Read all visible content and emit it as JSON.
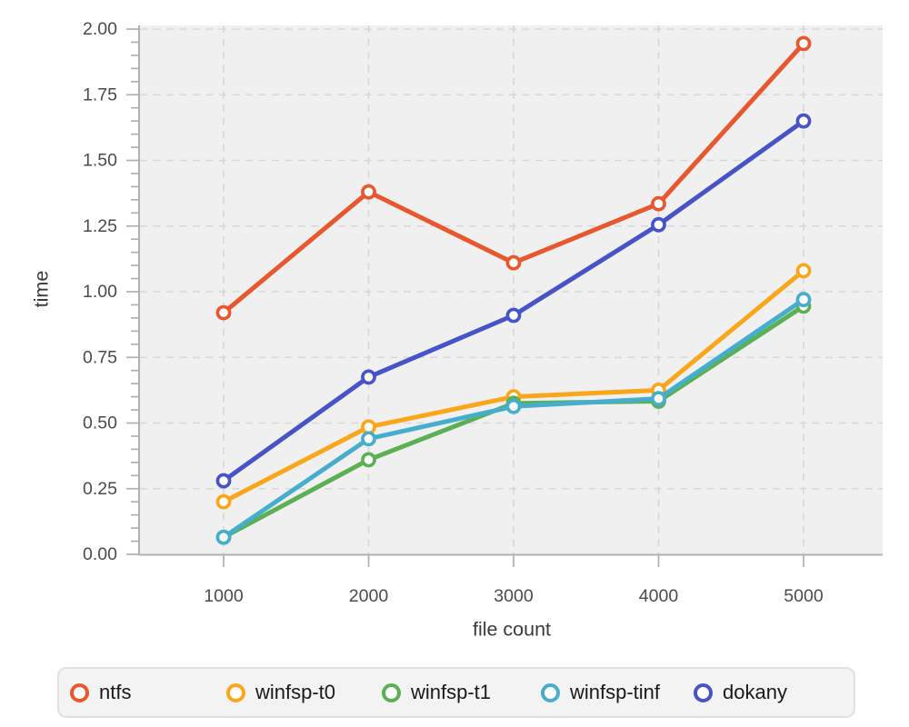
{
  "chart_data": {
    "type": "line",
    "title": "",
    "xlabel": "file count",
    "ylabel": "time",
    "x": [
      1000,
      2000,
      3000,
      4000,
      5000
    ],
    "x_tick_labels": [
      "1000",
      "2000",
      "3000",
      "4000",
      "5000"
    ],
    "y_ticks": [
      0,
      0.25,
      0.5,
      0.75,
      1.0,
      1.25,
      1.5,
      1.75,
      2.0
    ],
    "y_tick_labels": [
      "0.00",
      "0.25",
      "0.50",
      "0.75",
      "1.00",
      "1.25",
      "1.50",
      "1.75",
      "2.00"
    ],
    "ylim": [
      0,
      2.0
    ],
    "grid": "dashed",
    "legend_position": "bottom",
    "marker_style": "open-circle",
    "series": [
      {
        "name": "ntfs",
        "color": "#E8572D",
        "values": [
          0.92,
          1.38,
          1.11,
          1.335,
          1.945
        ]
      },
      {
        "name": "winfsp-t0",
        "color": "#FAA61A",
        "values": [
          0.2,
          0.485,
          0.6,
          0.625,
          1.08
        ]
      },
      {
        "name": "winfsp-t1",
        "color": "#5BB054",
        "values": [
          0.065,
          0.36,
          0.575,
          0.583,
          0.945
        ]
      },
      {
        "name": "winfsp-tinf",
        "color": "#46AECC",
        "values": [
          0.065,
          0.44,
          0.563,
          0.593,
          0.97
        ]
      },
      {
        "name": "dokany",
        "color": "#4753C8",
        "values": [
          0.28,
          0.675,
          0.91,
          1.255,
          1.65
        ]
      }
    ]
  }
}
